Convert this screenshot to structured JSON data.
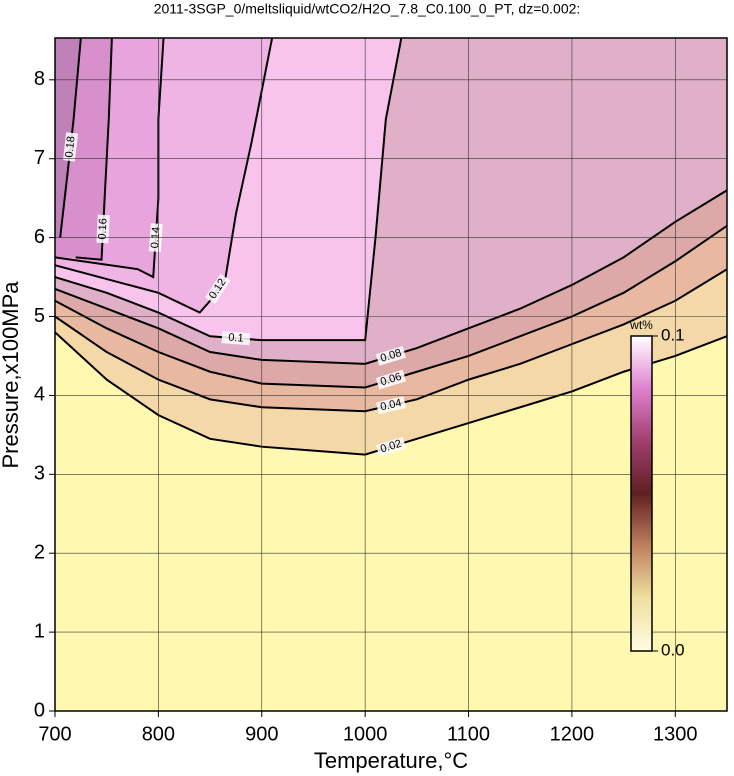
{
  "chart_data": {
    "type": "contour",
    "title": "2011-3SGP_0/meltsliquid/wtCO2/H2O_7.8_C0.100_0_PT, dz=0.002:",
    "x_label": "Temperature,°C",
    "y_label": "Pressure,x100MPa",
    "xlim": [
      700,
      1350
    ],
    "ylim": [
      0,
      8.53
    ],
    "xticks": [
      700,
      800,
      900,
      1000,
      1100,
      1200,
      1300
    ],
    "yticks": [
      0,
      1,
      2,
      3,
      4,
      5,
      6,
      7,
      8
    ],
    "grid": true,
    "base_color": "#fff8b0",
    "contours": [
      {
        "level": 0.02,
        "fill_color": "#f4d8a8",
        "x": [
          700,
          750,
          800,
          850,
          900,
          950,
          1000,
          1050,
          1100,
          1150,
          1200,
          1250,
          1300,
          1350
        ],
        "y": [
          4.8,
          4.2,
          3.75,
          3.45,
          3.35,
          3.3,
          3.25,
          3.45,
          3.65,
          3.85,
          4.05,
          4.3,
          4.5,
          4.75
        ]
      },
      {
        "level": 0.04,
        "fill_color": "#e8b8a0",
        "x": [
          700,
          750,
          800,
          850,
          900,
          1000,
          1050,
          1100,
          1150,
          1200,
          1250,
          1300,
          1350
        ],
        "y": [
          5.0,
          4.55,
          4.2,
          3.95,
          3.85,
          3.8,
          3.95,
          4.2,
          4.4,
          4.65,
          4.9,
          5.2,
          5.6
        ]
      },
      {
        "level": 0.06,
        "fill_color": "#dca8a8",
        "x": [
          700,
          750,
          800,
          850,
          900,
          1000,
          1050,
          1100,
          1150,
          1200,
          1250,
          1300,
          1350
        ],
        "y": [
          5.2,
          4.85,
          4.55,
          4.3,
          4.15,
          4.1,
          4.3,
          4.5,
          4.75,
          5.0,
          5.3,
          5.7,
          6.15
        ]
      },
      {
        "level": 0.08,
        "fill_color": "#e0b0c8",
        "x": [
          700,
          750,
          800,
          850,
          900,
          1000,
          1050,
          1100,
          1150,
          1200,
          1250,
          1300,
          1350
        ],
        "y": [
          5.35,
          5.1,
          4.85,
          4.55,
          4.45,
          4.4,
          4.6,
          4.85,
          5.1,
          5.4,
          5.75,
          6.2,
          6.6
        ]
      },
      {
        "level": 0.1,
        "fill_color": "#f8c4ec",
        "x": [
          700,
          750,
          800,
          850,
          900,
          1000,
          1010,
          1020,
          1035
        ],
        "y": [
          5.5,
          5.3,
          5.05,
          4.75,
          4.7,
          4.7,
          6.0,
          7.5,
          8.53
        ]
      },
      {
        "level": 0.12,
        "fill_color": "#f0b4e4",
        "x": [
          700,
          800,
          840,
          850,
          865,
          875,
          890,
          910
        ],
        "y": [
          5.65,
          5.3,
          5.05,
          5.2,
          5.5,
          6.3,
          7.2,
          8.53
        ]
      },
      {
        "level": 0.14,
        "fill_color": "#e8a4dc",
        "x": [
          700,
          780,
          795,
          800,
          800,
          805
        ],
        "y": [
          5.75,
          5.6,
          5.5,
          6.5,
          7.5,
          8.53
        ]
      },
      {
        "level": 0.16,
        "fill_color": "#d890cc",
        "x": [
          720,
          745,
          748,
          752,
          755
        ],
        "y": [
          5.75,
          5.72,
          6.5,
          7.5,
          8.53
        ]
      },
      {
        "level": 0.18,
        "fill_color": "#c080b8",
        "x": [
          705,
          712,
          718,
          725
        ],
        "y": [
          6.0,
          6.8,
          7.5,
          8.53
        ]
      }
    ],
    "colorbar": {
      "label": "wt%",
      "lim": [
        0,
        0.1
      ],
      "ticks": [
        {
          "value": 0,
          "label": "0.0"
        },
        0.1
      ],
      "colors": [
        "#fffce0",
        "#f0e0a0",
        "#c08060",
        "#602020",
        "#a04070",
        "#e080d0",
        "#ffffff"
      ]
    }
  }
}
